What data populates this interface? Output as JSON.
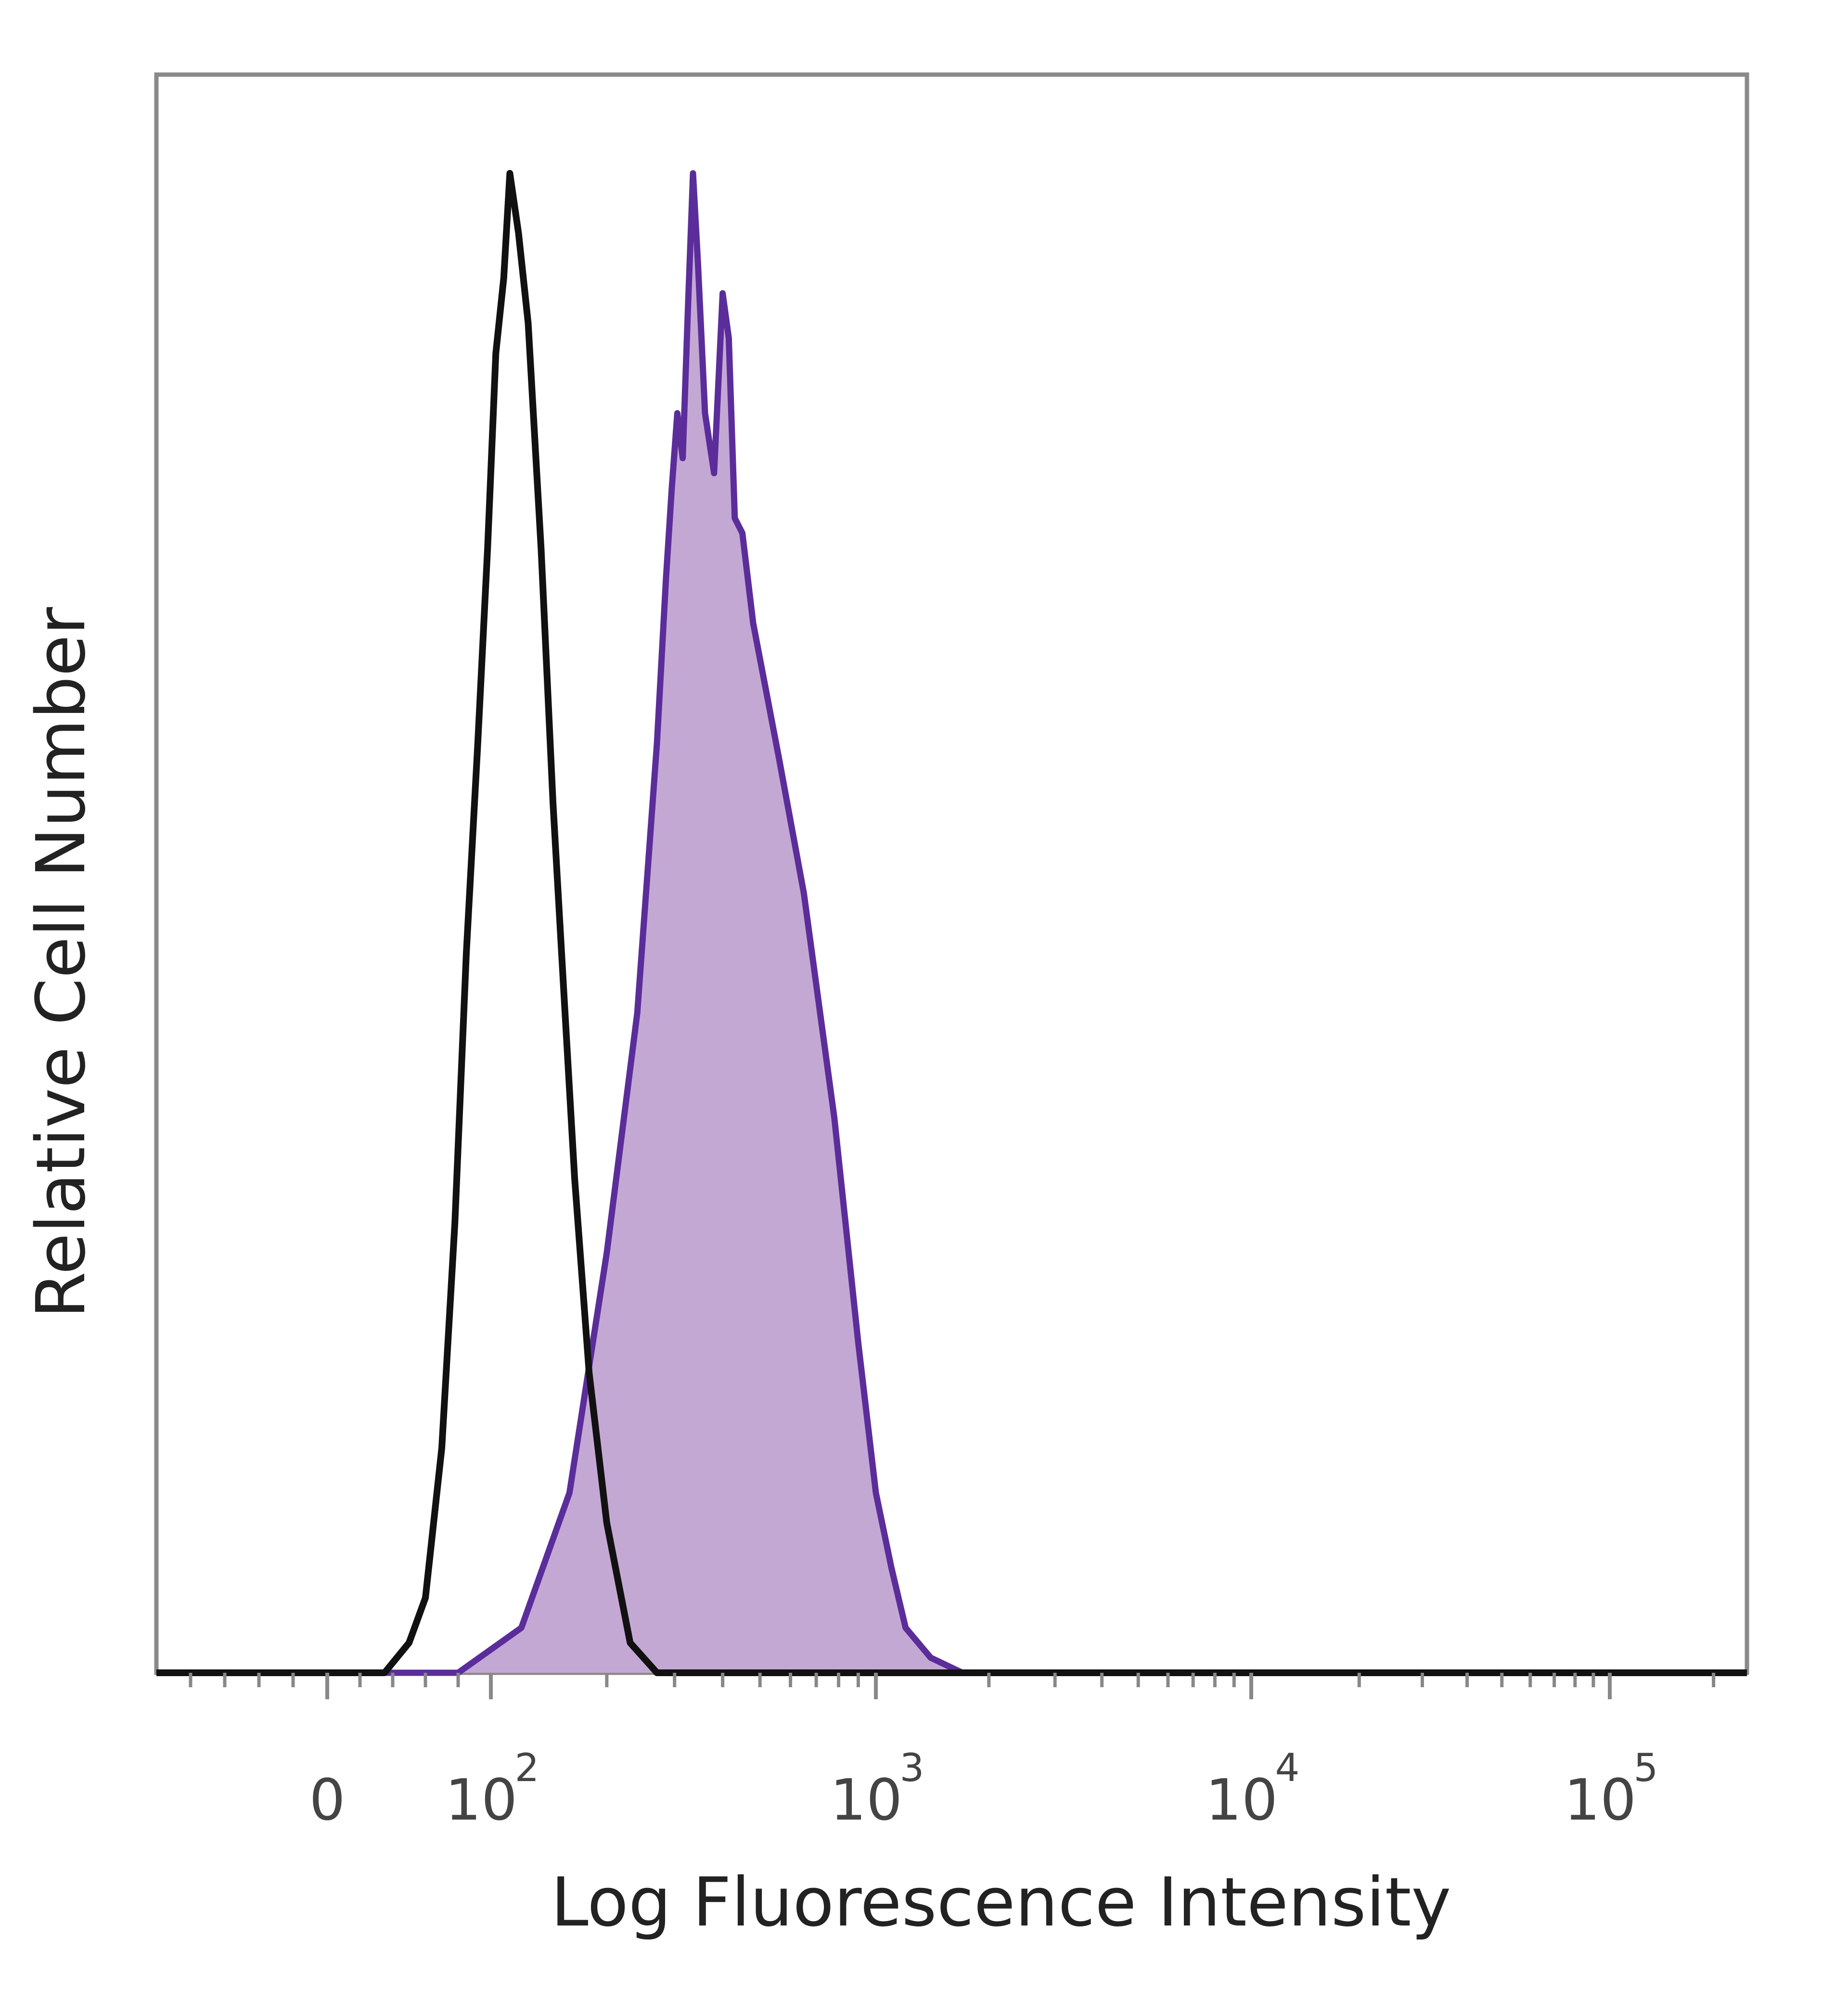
{
  "chart_data": {
    "type": "area",
    "xlabel": "Log Fluorescence Intensity",
    "ylabel": "Relative Cell Number",
    "x_scale": "biexponential",
    "xlim": [
      -100,
      250000
    ],
    "ylim": [
      0,
      100
    ],
    "x_ticks": [
      {
        "value": 0,
        "base": "0",
        "exp": ""
      },
      {
        "value": 100,
        "base": "10",
        "exp": "2"
      },
      {
        "value": 1000,
        "base": "10",
        "exp": "3"
      },
      {
        "value": 10000,
        "base": "10",
        "exp": "4"
      },
      {
        "value": 100000,
        "base": "10",
        "exp": "5"
      }
    ],
    "grid": false,
    "legend": "none",
    "series": [
      {
        "style": "outline",
        "color": "#111111",
        "points": [
          [
            -100,
            0
          ],
          [
            0,
            0
          ],
          [
            35,
            0
          ],
          [
            50,
            2
          ],
          [
            60,
            5
          ],
          [
            70,
            15
          ],
          [
            78,
            30
          ],
          [
            85,
            48
          ],
          [
            92,
            62
          ],
          [
            98,
            75
          ],
          [
            103,
            88
          ],
          [
            108,
            93
          ],
          [
            112,
            100
          ],
          [
            118,
            96
          ],
          [
            125,
            90
          ],
          [
            135,
            75
          ],
          [
            145,
            58
          ],
          [
            155,
            45
          ],
          [
            165,
            33
          ],
          [
            180,
            20
          ],
          [
            200,
            10
          ],
          [
            230,
            2
          ],
          [
            270,
            0
          ],
          [
            1000,
            0
          ],
          [
            250000,
            0
          ]
        ]
      },
      {
        "style": "filled",
        "color": "#5b2d9a",
        "fill": "#c4a8d4",
        "points": [
          [
            -100,
            0
          ],
          [
            40,
            0
          ],
          [
            80,
            0
          ],
          [
            120,
            3
          ],
          [
            160,
            12
          ],
          [
            200,
            28
          ],
          [
            240,
            44
          ],
          [
            270,
            62
          ],
          [
            285,
            73
          ],
          [
            295,
            79
          ],
          [
            305,
            84
          ],
          [
            315,
            81
          ],
          [
            325,
            91
          ],
          [
            335,
            100
          ],
          [
            345,
            94
          ],
          [
            360,
            84
          ],
          [
            380,
            80
          ],
          [
            400,
            92
          ],
          [
            415,
            89
          ],
          [
            430,
            77
          ],
          [
            450,
            76
          ],
          [
            480,
            70
          ],
          [
            560,
            61
          ],
          [
            650,
            52
          ],
          [
            780,
            37
          ],
          [
            900,
            22
          ],
          [
            1000,
            12
          ],
          [
            1100,
            7
          ],
          [
            1200,
            3
          ],
          [
            1400,
            1
          ],
          [
            1700,
            0
          ],
          [
            250000,
            0
          ]
        ]
      }
    ]
  }
}
